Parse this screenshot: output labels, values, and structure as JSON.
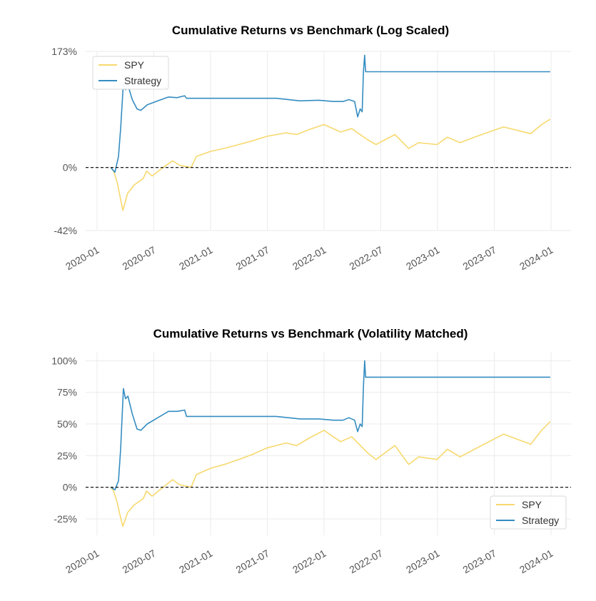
{
  "chart_data": [
    {
      "type": "line",
      "title": "Cumulative Returns vs Benchmark (Log Scaled)",
      "xlabel": "",
      "ylabel": "",
      "x_ticks": [
        "2020-01",
        "2020-07",
        "2021-01",
        "2021-07",
        "2022-01",
        "2022-07",
        "2023-01",
        "2023-07",
        "2024-01"
      ],
      "y_ticks": [
        "173%",
        "0%",
        "-42%"
      ],
      "y_tick_values": [
        173,
        0,
        -42
      ],
      "yscale": "log",
      "ylim": [
        -42,
        173
      ],
      "grid": true,
      "zero_line": true,
      "legend": {
        "position": "top-left",
        "entries": [
          "SPY",
          "Strategy"
        ]
      },
      "series": [
        {
          "name": "SPY",
          "color": "#f7d96e",
          "points": [
            [
              "2020-02-15",
              0
            ],
            [
              "2020-02-24",
              -3
            ],
            [
              "2020-03-05",
              -12
            ],
            [
              "2020-03-12",
              -20
            ],
            [
              "2020-03-23",
              -31
            ],
            [
              "2020-04-08",
              -20
            ],
            [
              "2020-04-29",
              -14
            ],
            [
              "2020-05-28",
              -9
            ],
            [
              "2020-06-08",
              -3
            ],
            [
              "2020-06-26",
              -7
            ],
            [
              "2020-07-31",
              0
            ],
            [
              "2020-08-31",
              6
            ],
            [
              "2020-09-23",
              2
            ],
            [
              "2020-10-30",
              0
            ],
            [
              "2020-11-16",
              10
            ],
            [
              "2020-12-31",
              15
            ],
            [
              "2021-02-15",
              18
            ],
            [
              "2021-03-31",
              22
            ],
            [
              "2021-05-14",
              26
            ],
            [
              "2021-06-30",
              31
            ],
            [
              "2021-08-31",
              35
            ],
            [
              "2021-10-04",
              33
            ],
            [
              "2021-11-15",
              39
            ],
            [
              "2021-12-31",
              45
            ],
            [
              "2022-02-24",
              36
            ],
            [
              "2022-03-29",
              40
            ],
            [
              "2022-05-20",
              27
            ],
            [
              "2022-06-16",
              22
            ],
            [
              "2022-08-16",
              33
            ],
            [
              "2022-09-30",
              18
            ],
            [
              "2022-10-31",
              24
            ],
            [
              "2022-12-30",
              22
            ],
            [
              "2023-02-02",
              30
            ],
            [
              "2023-03-13",
              24
            ],
            [
              "2023-04-28",
              30
            ],
            [
              "2023-06-30",
              38
            ],
            [
              "2023-07-31",
              42
            ],
            [
              "2023-10-27",
              34
            ],
            [
              "2023-12-01",
              45
            ],
            [
              "2023-12-29",
              52
            ]
          ]
        },
        {
          "name": "Strategy",
          "color": "#348dc1",
          "points": [
            [
              "2020-02-15",
              0
            ],
            [
              "2020-02-28",
              -4
            ],
            [
              "2020-03-09",
              10
            ],
            [
              "2020-03-16",
              40
            ],
            [
              "2020-03-25",
              108
            ],
            [
              "2020-04-01",
              96
            ],
            [
              "2020-04-09",
              104
            ],
            [
              "2020-04-23",
              80
            ],
            [
              "2020-05-08",
              66
            ],
            [
              "2020-05-20",
              64
            ],
            [
              "2020-06-10",
              72
            ],
            [
              "2020-07-14",
              78
            ],
            [
              "2020-08-18",
              84
            ],
            [
              "2020-09-15",
              83
            ],
            [
              "2020-10-09",
              86
            ],
            [
              "2020-10-15",
              82
            ],
            [
              "2021-07-30",
              82
            ],
            [
              "2021-10-15",
              78
            ],
            [
              "2021-12-15",
              79
            ],
            [
              "2022-01-31",
              77
            ],
            [
              "2022-03-01",
              77
            ],
            [
              "2022-03-20",
              80
            ],
            [
              "2022-04-08",
              77
            ],
            [
              "2022-04-18",
              55
            ],
            [
              "2022-04-26",
              66
            ],
            [
              "2022-05-02",
              62
            ],
            [
              "2022-05-06",
              130
            ],
            [
              "2022-05-10",
              164
            ],
            [
              "2022-05-13",
              129
            ],
            [
              "2023-12-29",
              129
            ]
          ]
        }
      ]
    },
    {
      "type": "line",
      "title": "Cumulative Returns vs Benchmark (Volatility Matched)",
      "xlabel": "",
      "ylabel": "",
      "x_ticks": [
        "2020-01",
        "2020-07",
        "2021-01",
        "2021-07",
        "2022-01",
        "2022-07",
        "2023-01",
        "2023-07",
        "2024-01"
      ],
      "y_ticks": [
        "100%",
        "75%",
        "50%",
        "25%",
        "0%",
        "-25%"
      ],
      "y_tick_values": [
        100,
        75,
        50,
        25,
        0,
        -25
      ],
      "ylim": [
        -38,
        107
      ],
      "grid": true,
      "zero_line": true,
      "legend": {
        "position": "bottom-right",
        "entries": [
          "SPY",
          "Strategy"
        ]
      },
      "series": [
        {
          "name": "SPY",
          "color": "#f7d96e",
          "points": [
            [
              "2020-02-15",
              0
            ],
            [
              "2020-02-24",
              -3
            ],
            [
              "2020-03-05",
              -12
            ],
            [
              "2020-03-12",
              -20
            ],
            [
              "2020-03-23",
              -31
            ],
            [
              "2020-04-08",
              -20
            ],
            [
              "2020-04-29",
              -14
            ],
            [
              "2020-05-28",
              -9
            ],
            [
              "2020-06-08",
              -3
            ],
            [
              "2020-06-26",
              -7
            ],
            [
              "2020-07-31",
              0
            ],
            [
              "2020-08-31",
              6
            ],
            [
              "2020-09-23",
              2
            ],
            [
              "2020-10-30",
              0
            ],
            [
              "2020-11-16",
              10
            ],
            [
              "2020-12-31",
              15
            ],
            [
              "2021-02-15",
              18
            ],
            [
              "2021-03-31",
              22
            ],
            [
              "2021-05-14",
              26
            ],
            [
              "2021-06-30",
              31
            ],
            [
              "2021-08-31",
              35
            ],
            [
              "2021-10-04",
              33
            ],
            [
              "2021-11-15",
              39
            ],
            [
              "2021-12-31",
              45
            ],
            [
              "2022-02-24",
              36
            ],
            [
              "2022-03-29",
              40
            ],
            [
              "2022-05-20",
              27
            ],
            [
              "2022-06-16",
              22
            ],
            [
              "2022-08-16",
              33
            ],
            [
              "2022-09-30",
              18
            ],
            [
              "2022-10-31",
              24
            ],
            [
              "2022-12-30",
              22
            ],
            [
              "2023-02-02",
              30
            ],
            [
              "2023-03-13",
              24
            ],
            [
              "2023-04-28",
              30
            ],
            [
              "2023-06-30",
              38
            ],
            [
              "2023-07-31",
              42
            ],
            [
              "2023-10-27",
              34
            ],
            [
              "2023-12-01",
              45
            ],
            [
              "2023-12-29",
              52
            ]
          ]
        },
        {
          "name": "Strategy",
          "color": "#348dc1",
          "points": [
            [
              "2020-02-15",
              0
            ],
            [
              "2020-02-28",
              -2
            ],
            [
              "2020-03-09",
              5
            ],
            [
              "2020-03-16",
              30
            ],
            [
              "2020-03-25",
              78
            ],
            [
              "2020-04-01",
              70
            ],
            [
              "2020-04-09",
              72
            ],
            [
              "2020-04-23",
              58
            ],
            [
              "2020-05-08",
              46
            ],
            [
              "2020-05-20",
              45
            ],
            [
              "2020-06-10",
              50
            ],
            [
              "2020-07-14",
              55
            ],
            [
              "2020-08-18",
              60
            ],
            [
              "2020-09-15",
              60
            ],
            [
              "2020-10-09",
              61
            ],
            [
              "2020-10-15",
              56
            ],
            [
              "2021-07-30",
              56
            ],
            [
              "2021-10-15",
              54
            ],
            [
              "2021-12-15",
              54
            ],
            [
              "2022-01-31",
              53
            ],
            [
              "2022-03-01",
              53
            ],
            [
              "2022-03-20",
              55
            ],
            [
              "2022-04-08",
              53
            ],
            [
              "2022-04-18",
              44
            ],
            [
              "2022-04-26",
              50
            ],
            [
              "2022-05-02",
              48
            ],
            [
              "2022-05-06",
              80
            ],
            [
              "2022-05-10",
              100
            ],
            [
              "2022-05-13",
              87
            ],
            [
              "2023-12-29",
              87
            ]
          ]
        }
      ]
    }
  ]
}
